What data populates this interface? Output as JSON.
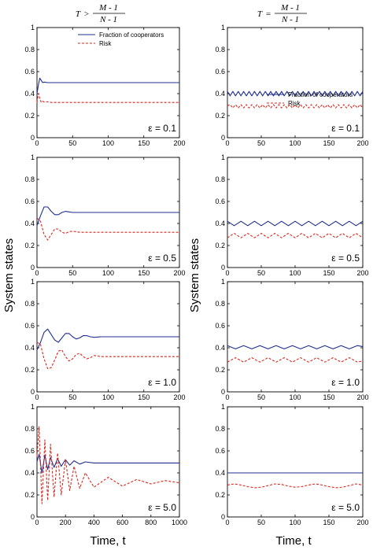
{
  "figure": {
    "ylabel": "System states",
    "xlabel_left": "Time, t",
    "xlabel_right": "Time, t",
    "header_left": {
      "lhs": "T",
      "op": ">",
      "num": "M - 1",
      "den": "N - 1"
    },
    "header_right": {
      "lhs": "T",
      "op": "=",
      "num": "M - 1",
      "den": "N - 1"
    }
  },
  "legend_labels": [
    "Fraction of cooperators",
    "Risk"
  ],
  "colors": {
    "cooperators": "#1f2f8f",
    "risk": "#d9271c",
    "axis": "#000000"
  },
  "chart_data": [
    {
      "type": "line",
      "panel": "left-1",
      "annotation": "ε = 0.1",
      "xlim": [
        0,
        200
      ],
      "ylim": [
        0,
        1
      ],
      "xticks": [
        0,
        50,
        100,
        150,
        200
      ],
      "yticks": [
        0,
        0.2,
        0.4,
        0.6,
        0.8,
        1
      ],
      "xtick_labels": [
        "0",
        "50",
        "100",
        "150",
        "200"
      ],
      "ytick_labels": [
        "0",
        "0.2",
        "0.4",
        "0.6",
        "0.8",
        "1"
      ],
      "legend": "top-right",
      "series": [
        {
          "name": "Fraction of cooperators",
          "style": "solid",
          "x": [
            0,
            2,
            4,
            6,
            8,
            10,
            15,
            20,
            30,
            50,
            100,
            150,
            200
          ],
          "y": [
            0.4,
            0.48,
            0.54,
            0.52,
            0.5,
            0.505,
            0.5,
            0.5,
            0.5,
            0.5,
            0.5,
            0.5,
            0.5
          ]
        },
        {
          "name": "Risk",
          "style": "dashed",
          "x": [
            0,
            2,
            4,
            6,
            8,
            10,
            15,
            20,
            30,
            50,
            100,
            150,
            200
          ],
          "y": [
            0.32,
            0.4,
            0.36,
            0.32,
            0.33,
            0.325,
            0.325,
            0.32,
            0.32,
            0.32,
            0.32,
            0.32,
            0.32
          ]
        }
      ]
    },
    {
      "type": "line",
      "panel": "right-1",
      "annotation": "ε = 0.1",
      "xlim": [
        0,
        200
      ],
      "ylim": [
        0,
        1
      ],
      "xticks": [
        0,
        50,
        100,
        150,
        200
      ],
      "yticks": [
        0,
        0.2,
        0.4,
        0.6,
        0.8,
        1
      ],
      "xtick_labels": [
        "0",
        "50",
        "100",
        "150",
        "200"
      ],
      "ytick_labels": [
        "0",
        "0.2",
        "0.4",
        "0.6",
        "0.8",
        "1"
      ],
      "legend": "middle-right",
      "series": [
        {
          "name": "Fraction of cooperators",
          "style": "solid",
          "x": [
            0,
            4,
            8,
            12,
            16,
            20,
            24,
            28,
            32,
            36,
            40,
            44,
            48,
            52,
            56,
            60,
            64,
            68,
            72,
            76,
            80,
            84,
            88,
            92,
            96,
            100,
            104,
            108,
            112,
            116,
            120,
            124,
            128,
            132,
            136,
            140,
            144,
            148,
            152,
            156,
            160,
            164,
            168,
            172,
            176,
            180,
            184,
            188,
            192,
            196,
            200
          ],
          "y": [
            0.42,
            0.38,
            0.42,
            0.38,
            0.42,
            0.38,
            0.42,
            0.38,
            0.42,
            0.38,
            0.42,
            0.38,
            0.42,
            0.38,
            0.42,
            0.38,
            0.42,
            0.38,
            0.42,
            0.38,
            0.42,
            0.38,
            0.42,
            0.38,
            0.42,
            0.38,
            0.42,
            0.38,
            0.42,
            0.38,
            0.42,
            0.38,
            0.42,
            0.38,
            0.42,
            0.38,
            0.42,
            0.38,
            0.42,
            0.38,
            0.42,
            0.38,
            0.42,
            0.38,
            0.42,
            0.38,
            0.42,
            0.38,
            0.42,
            0.38,
            0.42
          ]
        },
        {
          "name": "Risk",
          "style": "dashed",
          "x": [
            0,
            4,
            8,
            12,
            16,
            20,
            24,
            28,
            32,
            36,
            40,
            44,
            48,
            52,
            56,
            60,
            64,
            68,
            72,
            76,
            80,
            84,
            88,
            92,
            96,
            100,
            104,
            108,
            112,
            116,
            120,
            124,
            128,
            132,
            136,
            140,
            144,
            148,
            152,
            156,
            160,
            164,
            168,
            172,
            176,
            180,
            184,
            188,
            192,
            196,
            200
          ],
          "y": [
            0.29,
            0.3,
            0.27,
            0.3,
            0.27,
            0.3,
            0.27,
            0.3,
            0.27,
            0.3,
            0.27,
            0.3,
            0.27,
            0.3,
            0.27,
            0.3,
            0.27,
            0.3,
            0.27,
            0.3,
            0.27,
            0.3,
            0.27,
            0.3,
            0.27,
            0.3,
            0.27,
            0.3,
            0.27,
            0.3,
            0.27,
            0.3,
            0.27,
            0.3,
            0.27,
            0.3,
            0.27,
            0.3,
            0.27,
            0.3,
            0.27,
            0.3,
            0.27,
            0.3,
            0.27,
            0.3,
            0.27,
            0.3,
            0.27,
            0.3,
            0.27
          ]
        }
      ]
    },
    {
      "type": "line",
      "panel": "left-2",
      "annotation": "ε = 0.5",
      "xlim": [
        0,
        200
      ],
      "ylim": [
        0,
        1
      ],
      "xticks": [
        0,
        50,
        100,
        150,
        200
      ],
      "yticks": [
        0,
        0.2,
        0.4,
        0.6,
        0.8,
        1
      ],
      "xtick_labels": [
        "0",
        "50",
        "100",
        "150",
        "200"
      ],
      "ytick_labels": [
        "0",
        "0.2",
        "0.4",
        "0.6",
        "0.8",
        "1"
      ],
      "series": [
        {
          "name": "Fraction of cooperators",
          "style": "solid",
          "x": [
            0,
            5,
            10,
            15,
            20,
            25,
            30,
            35,
            40,
            45,
            50,
            60,
            70,
            80,
            100,
            150,
            200
          ],
          "y": [
            0.38,
            0.47,
            0.55,
            0.55,
            0.51,
            0.48,
            0.48,
            0.5,
            0.51,
            0.505,
            0.5,
            0.5,
            0.5,
            0.5,
            0.5,
            0.5,
            0.5
          ]
        },
        {
          "name": "Risk",
          "style": "dashed",
          "x": [
            0,
            5,
            10,
            15,
            20,
            25,
            30,
            35,
            40,
            45,
            50,
            60,
            70,
            80,
            100,
            150,
            200
          ],
          "y": [
            0.45,
            0.42,
            0.3,
            0.25,
            0.3,
            0.35,
            0.35,
            0.32,
            0.31,
            0.325,
            0.33,
            0.32,
            0.32,
            0.32,
            0.32,
            0.32,
            0.32
          ]
        }
      ]
    },
    {
      "type": "line",
      "panel": "right-2",
      "annotation": "ε = 0.5",
      "xlim": [
        0,
        200
      ],
      "ylim": [
        0,
        1
      ],
      "xticks": [
        0,
        50,
        100,
        150,
        200
      ],
      "yticks": [
        0,
        0.2,
        0.4,
        0.6,
        0.8,
        1
      ],
      "xtick_labels": [
        "0",
        "50",
        "100",
        "150",
        "200"
      ],
      "ytick_labels": [
        "0",
        "0.2",
        "0.4",
        "0.6",
        "0.8",
        "1"
      ],
      "series": [
        {
          "name": "Fraction of cooperators",
          "style": "solid",
          "x": [
            0,
            10,
            20,
            30,
            40,
            50,
            60,
            70,
            80,
            90,
            100,
            110,
            120,
            130,
            140,
            150,
            160,
            170,
            180,
            190,
            200
          ],
          "y": [
            0.42,
            0.38,
            0.42,
            0.38,
            0.42,
            0.38,
            0.42,
            0.38,
            0.42,
            0.38,
            0.42,
            0.38,
            0.42,
            0.38,
            0.42,
            0.38,
            0.42,
            0.38,
            0.42,
            0.38,
            0.42
          ]
        },
        {
          "name": "Risk",
          "style": "dashed",
          "x": [
            0,
            10,
            20,
            30,
            40,
            50,
            60,
            70,
            80,
            90,
            100,
            110,
            120,
            130,
            140,
            150,
            160,
            170,
            180,
            190,
            200
          ],
          "y": [
            0.27,
            0.31,
            0.27,
            0.31,
            0.27,
            0.31,
            0.27,
            0.31,
            0.27,
            0.31,
            0.27,
            0.31,
            0.27,
            0.31,
            0.27,
            0.31,
            0.27,
            0.31,
            0.27,
            0.31,
            0.27
          ]
        }
      ]
    },
    {
      "type": "line",
      "panel": "left-3",
      "annotation": "ε = 1.0",
      "xlim": [
        0,
        200
      ],
      "ylim": [
        0,
        1
      ],
      "xticks": [
        0,
        50,
        100,
        150,
        200
      ],
      "yticks": [
        0,
        0.2,
        0.4,
        0.6,
        0.8,
        1
      ],
      "xtick_labels": [
        "0",
        "50",
        "100",
        "150",
        "200"
      ],
      "ytick_labels": [
        "0",
        "0.2",
        "0.4",
        "0.6",
        "0.8",
        "1"
      ],
      "series": [
        {
          "name": "Fraction of cooperators",
          "style": "solid",
          "x": [
            0,
            5,
            10,
            15,
            20,
            25,
            30,
            35,
            40,
            45,
            50,
            55,
            60,
            65,
            70,
            75,
            80,
            90,
            100,
            150,
            200
          ],
          "y": [
            0.38,
            0.45,
            0.54,
            0.57,
            0.52,
            0.47,
            0.45,
            0.49,
            0.53,
            0.53,
            0.5,
            0.48,
            0.49,
            0.51,
            0.51,
            0.5,
            0.495,
            0.5,
            0.5,
            0.5,
            0.5
          ]
        },
        {
          "name": "Risk",
          "style": "dashed",
          "x": [
            0,
            5,
            10,
            15,
            20,
            25,
            30,
            35,
            40,
            45,
            50,
            55,
            60,
            65,
            70,
            75,
            80,
            90,
            100,
            150,
            200
          ],
          "y": [
            0.45,
            0.43,
            0.3,
            0.21,
            0.22,
            0.29,
            0.37,
            0.38,
            0.32,
            0.28,
            0.3,
            0.34,
            0.35,
            0.32,
            0.3,
            0.31,
            0.33,
            0.32,
            0.32,
            0.32,
            0.32
          ]
        }
      ]
    },
    {
      "type": "line",
      "panel": "right-3",
      "annotation": "ε = 1.0",
      "xlim": [
        0,
        200
      ],
      "ylim": [
        0,
        1
      ],
      "xticks": [
        0,
        50,
        100,
        150,
        200
      ],
      "yticks": [
        0,
        0.2,
        0.4,
        0.6,
        0.8,
        1
      ],
      "xtick_labels": [
        "0",
        "50",
        "100",
        "150",
        "200"
      ],
      "ytick_labels": [
        "0",
        "0.2",
        "0.4",
        "0.6",
        "0.8",
        "1"
      ],
      "series": [
        {
          "name": "Fraction of cooperators",
          "style": "solid",
          "x": [
            0,
            12,
            24,
            36,
            48,
            60,
            72,
            84,
            96,
            108,
            120,
            132,
            144,
            156,
            168,
            180,
            192,
            200
          ],
          "y": [
            0.42,
            0.39,
            0.42,
            0.39,
            0.42,
            0.39,
            0.42,
            0.39,
            0.42,
            0.39,
            0.42,
            0.39,
            0.42,
            0.39,
            0.42,
            0.39,
            0.42,
            0.41
          ]
        },
        {
          "name": "Risk",
          "style": "dashed",
          "x": [
            0,
            12,
            24,
            36,
            48,
            60,
            72,
            84,
            96,
            108,
            120,
            132,
            144,
            156,
            168,
            180,
            192,
            200
          ],
          "y": [
            0.27,
            0.31,
            0.27,
            0.31,
            0.27,
            0.31,
            0.27,
            0.31,
            0.27,
            0.31,
            0.27,
            0.31,
            0.27,
            0.31,
            0.27,
            0.31,
            0.27,
            0.28
          ]
        }
      ]
    },
    {
      "type": "line",
      "panel": "left-4",
      "annotation": "ε = 5.0",
      "xlim": [
        0,
        1000
      ],
      "ylim": [
        0,
        1
      ],
      "xticks": [
        0,
        200,
        400,
        600,
        800,
        1000
      ],
      "yticks": [
        0,
        0.2,
        0.4,
        0.6,
        0.8,
        1
      ],
      "xtick_labels": [
        "0",
        "200",
        "400",
        "600",
        "800",
        "1000"
      ],
      "ytick_labels": [
        "0",
        "0.2",
        "0.4",
        "0.6",
        "0.8",
        "1"
      ],
      "series": [
        {
          "name": "Fraction of cooperators",
          "style": "solid",
          "x": [
            0,
            15,
            35,
            55,
            75,
            95,
            120,
            145,
            170,
            200,
            230,
            260,
            300,
            340,
            400,
            500,
            600,
            800,
            1000
          ],
          "y": [
            0.5,
            0.57,
            0.4,
            0.56,
            0.43,
            0.54,
            0.45,
            0.53,
            0.46,
            0.52,
            0.47,
            0.51,
            0.48,
            0.5,
            0.49,
            0.49,
            0.49,
            0.49,
            0.49
          ]
        },
        {
          "name": "Risk",
          "style": "dashed",
          "x": [
            0,
            15,
            35,
            55,
            75,
            95,
            120,
            145,
            170,
            200,
            230,
            260,
            300,
            340,
            400,
            500,
            600,
            700,
            800,
            900,
            1000
          ],
          "y": [
            0.55,
            0.82,
            0.12,
            0.7,
            0.15,
            0.66,
            0.18,
            0.58,
            0.2,
            0.52,
            0.24,
            0.46,
            0.26,
            0.4,
            0.27,
            0.36,
            0.28,
            0.34,
            0.3,
            0.33,
            0.31
          ]
        }
      ]
    },
    {
      "type": "line",
      "panel": "right-4",
      "annotation": "ε = 5.0",
      "xlim": [
        0,
        200
      ],
      "ylim": [
        0,
        1
      ],
      "xticks": [
        0,
        50,
        100,
        150,
        200
      ],
      "yticks": [
        0,
        0.2,
        0.4,
        0.6,
        0.8,
        1
      ],
      "xtick_labels": [
        "0",
        "50",
        "100",
        "150",
        "200"
      ],
      "ytick_labels": [
        "0",
        "0.2",
        "0.4",
        "0.6",
        "0.8",
        "1"
      ],
      "series": [
        {
          "name": "Fraction of cooperators",
          "style": "solid",
          "x": [
            0,
            20,
            40,
            60,
            80,
            100,
            120,
            140,
            160,
            180,
            200
          ],
          "y": [
            0.4,
            0.4,
            0.4,
            0.4,
            0.4,
            0.4,
            0.4,
            0.4,
            0.4,
            0.4,
            0.4
          ]
        },
        {
          "name": "Risk",
          "style": "dashed",
          "x": [
            0,
            10,
            20,
            30,
            40,
            50,
            60,
            70,
            80,
            90,
            100,
            110,
            120,
            130,
            140,
            150,
            160,
            170,
            180,
            190,
            200
          ],
          "y": [
            0.29,
            0.3,
            0.29,
            0.275,
            0.265,
            0.27,
            0.285,
            0.3,
            0.295,
            0.28,
            0.27,
            0.275,
            0.29,
            0.3,
            0.29,
            0.275,
            0.265,
            0.27,
            0.285,
            0.3,
            0.29
          ]
        }
      ]
    }
  ]
}
